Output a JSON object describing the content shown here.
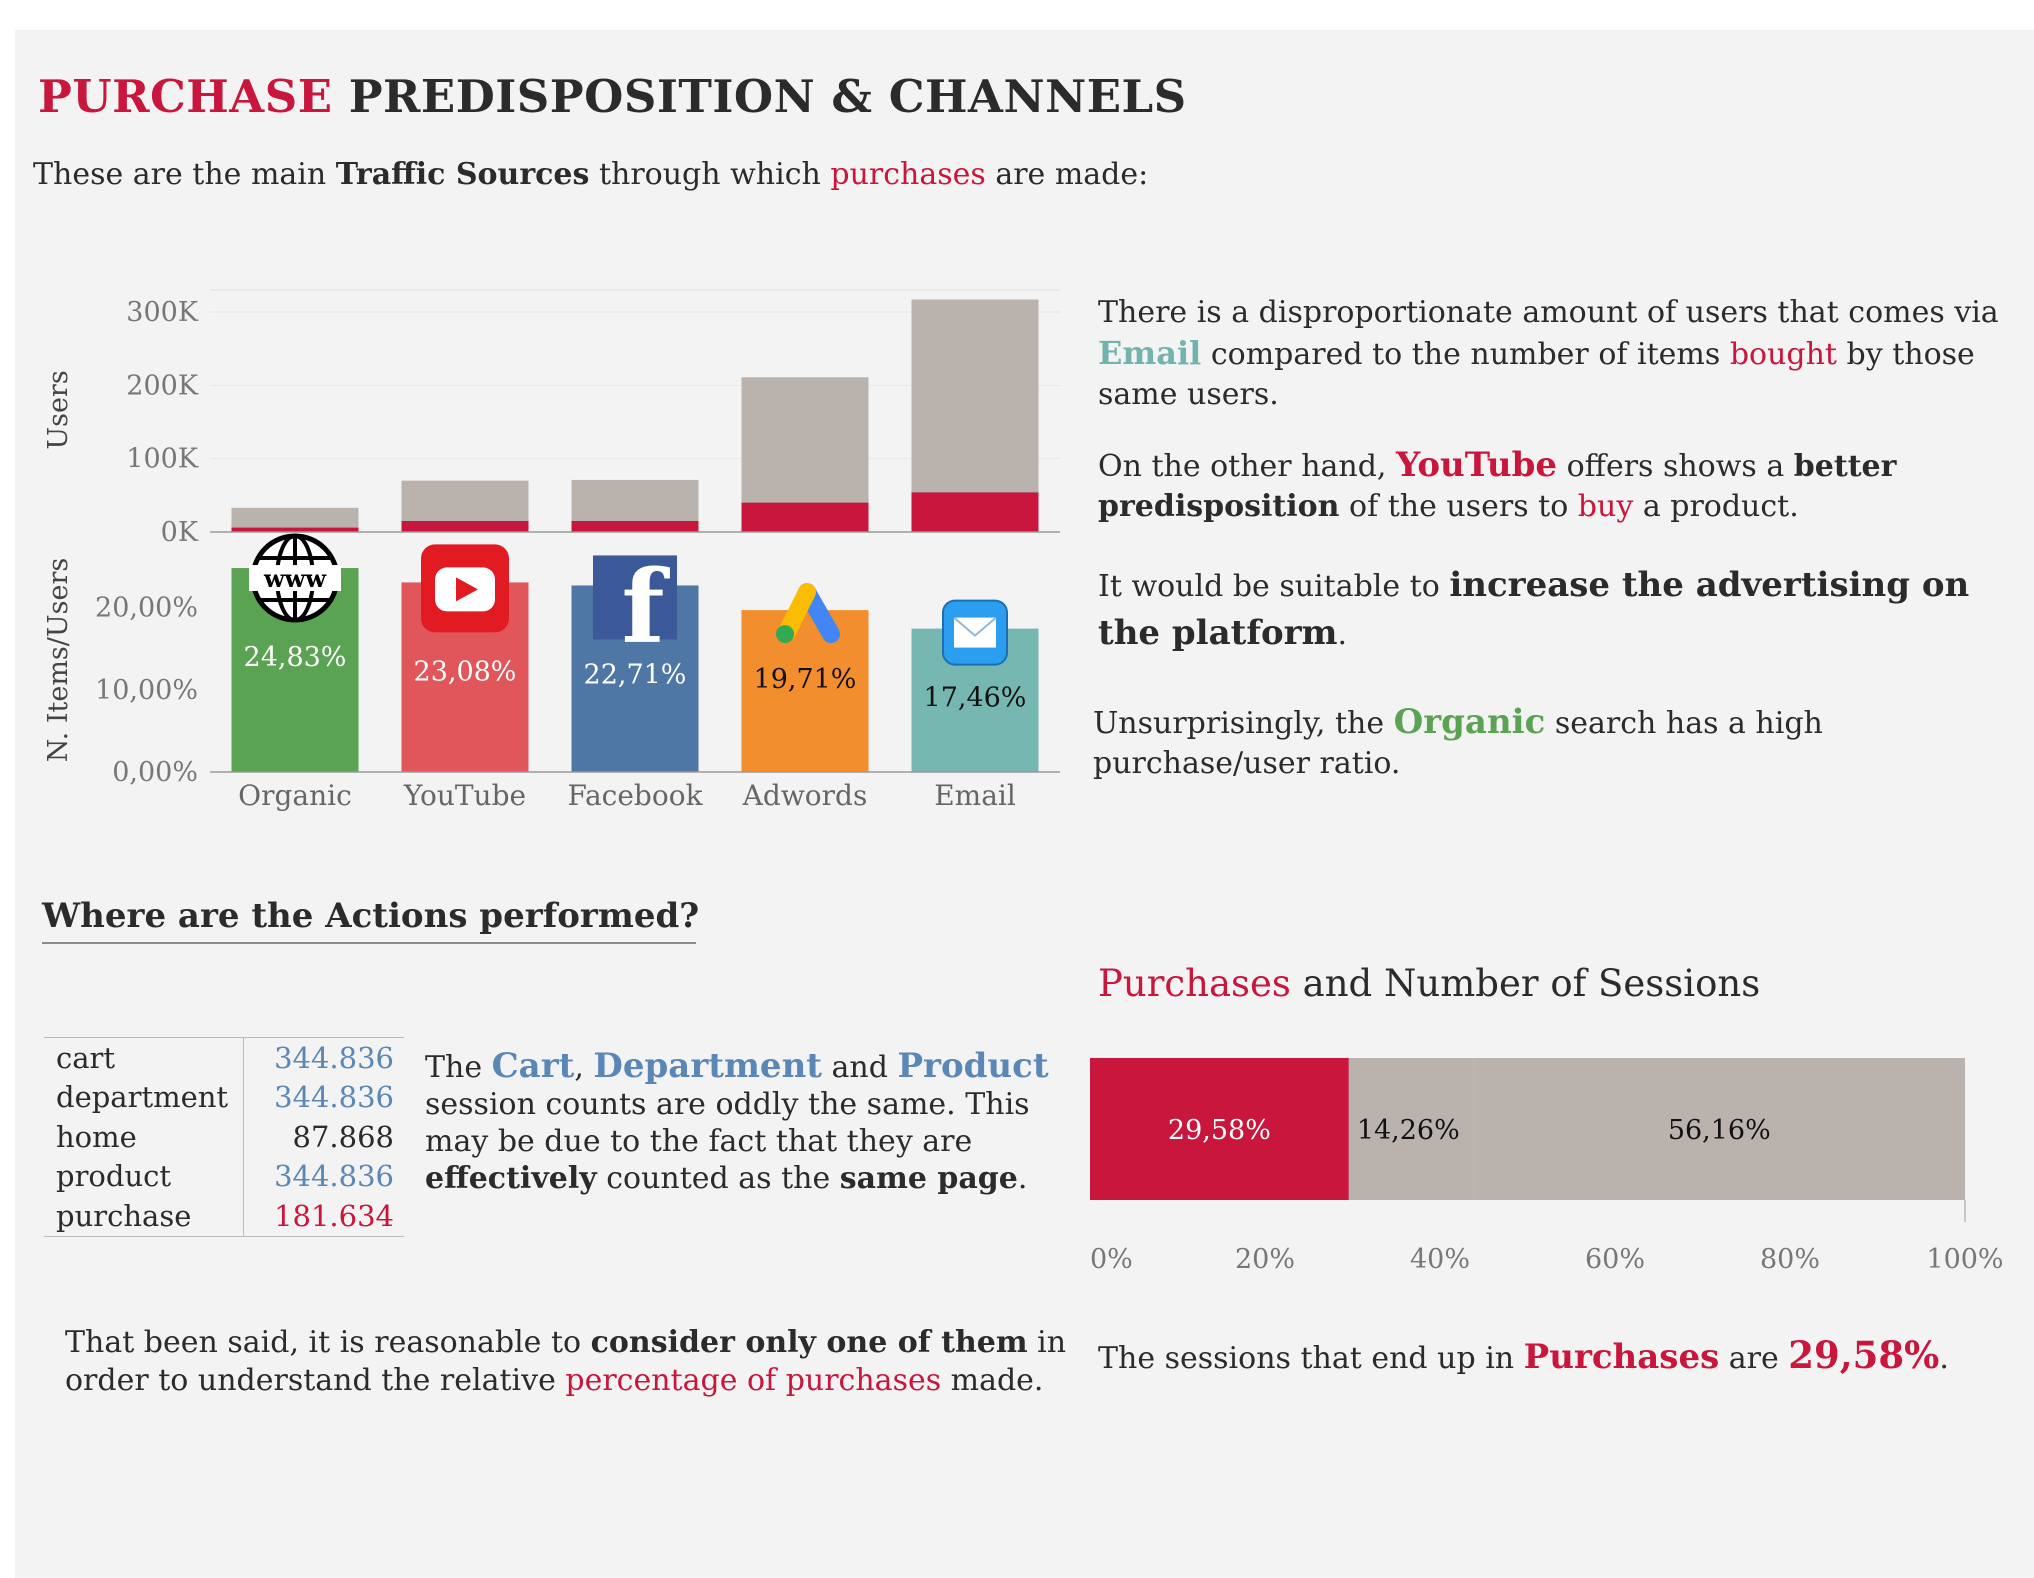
{
  "title": {
    "part1": "PURCHASE",
    "part2": " PREDISPOSITION & CHANNELS"
  },
  "subtitle": {
    "a": "These are the main ",
    "b": "Traffic Sources",
    "c": " through which ",
    "d": "purchases",
    "e": " are made:"
  },
  "colors": {
    "accent_red": "#c8163d",
    "gray_bar": "#bab2ad",
    "organic": "#5aa352",
    "youtube": "#e0565b",
    "facebook": "#4f77a6",
    "adwords": "#f28e2e",
    "email": "#77b7b1",
    "teal_text": "#72b3ab",
    "blue_text": "#5b87b6"
  },
  "chart_data": [
    {
      "type": "bar",
      "panel": "users",
      "categories": [
        "Organic",
        "YouTube",
        "Facebook",
        "Adwords",
        "Email"
      ],
      "series": [
        {
          "values": [
            33000,
            70000,
            71000,
            211000,
            317000
          ],
          "color": "#bab2ad"
        },
        {
          "values": [
            6000,
            15000,
            15000,
            40000,
            54000
          ],
          "color": "#c8163d"
        }
      ],
      "ylabel": "Users",
      "yticks": [
        "300K",
        "200K",
        "100K",
        "0K"
      ],
      "ylim": [
        0,
        330000
      ]
    },
    {
      "type": "bar",
      "panel": "items_per_user",
      "categories": [
        "Organic",
        "YouTube",
        "Facebook",
        "Adwords",
        "Email"
      ],
      "values": [
        24.83,
        23.08,
        22.71,
        19.71,
        17.46
      ],
      "labels": [
        "24,83%",
        "23,08%",
        "22,71%",
        "19,71%",
        "17,46%"
      ],
      "colors": [
        "#5aa352",
        "#e0565b",
        "#4f77a6",
        "#f28e2e",
        "#77b7b1"
      ],
      "icons": [
        "globe-www-icon",
        "youtube-icon",
        "facebook-icon",
        "adwords-icon",
        "email-icon"
      ],
      "ylabel": "N. Items/Users",
      "yticks": [
        "20,00%",
        "10,00%",
        "0,00%"
      ],
      "ylim": [
        0,
        28
      ]
    },
    {
      "type": "bar",
      "orientation": "horizontal-stacked",
      "title": "Purchases and Number of Sessions",
      "segments": [
        {
          "value": 29.58,
          "label": "29,58%",
          "color": "#c8163d"
        },
        {
          "value": 14.26,
          "label": "14,26%",
          "color": "#bab2ad"
        },
        {
          "value": 56.16,
          "label": "56,16%",
          "color": "#bab2ad"
        }
      ],
      "xticks": [
        "0%",
        "20%",
        "40%",
        "60%",
        "80%",
        "100%"
      ],
      "xlim": [
        0,
        100
      ]
    }
  ],
  "insights": {
    "p1": {
      "a": "There is a disproportionate amount of users that comes via ",
      "email": "Email",
      "b": " compared to the number of items ",
      "bought": "bought",
      "c": " by those same users."
    },
    "p2": {
      "a": "On the other hand, ",
      "youtube": "YouTube",
      "b": " offers shows a ",
      "bold": "better predisposition",
      "c": " of the users to ",
      "buy": "buy",
      "d": " a product."
    },
    "p3": {
      "a": "It would be suitable to ",
      "bold": "increase the advertising on the platform",
      "b": "."
    },
    "p4": {
      "a": "Unsurprisingly, the ",
      "organic": "Organic",
      "b": " search has a high purchase/user ratio."
    }
  },
  "actions": {
    "heading": "Where are the Actions performed?",
    "rows": [
      {
        "name": "cart",
        "value": "344.836"
      },
      {
        "name": "department",
        "value": "344.836"
      },
      {
        "name": "home",
        "value": "87.868"
      },
      {
        "name": "product",
        "value": "344.836"
      },
      {
        "name": "purchase",
        "value": "181.634"
      }
    ],
    "note": {
      "a": "The ",
      "cart": "Cart",
      "comma": ", ",
      "department": "Department",
      "and": " and ",
      "product": "Product",
      "b": " session counts are oddly the same. This may be due to the fact that they are ",
      "effectively": "effectively",
      "c": " counted as the ",
      "same": "same page",
      "d": "."
    },
    "conclusion": {
      "a": "That been said, it is reasonable to ",
      "bold": "consider only one of them",
      "b": " in order  to understand the relative ",
      "red": "percentage of  purchases",
      "c": " made."
    }
  },
  "sessions": {
    "title_a": "Purchases",
    "title_b": " and Number of Sessions",
    "summary": {
      "a": "The sessions that end up in ",
      "purchases": "Purchases",
      "b": " are ",
      "pct": "29,58%",
      "c": "."
    }
  }
}
